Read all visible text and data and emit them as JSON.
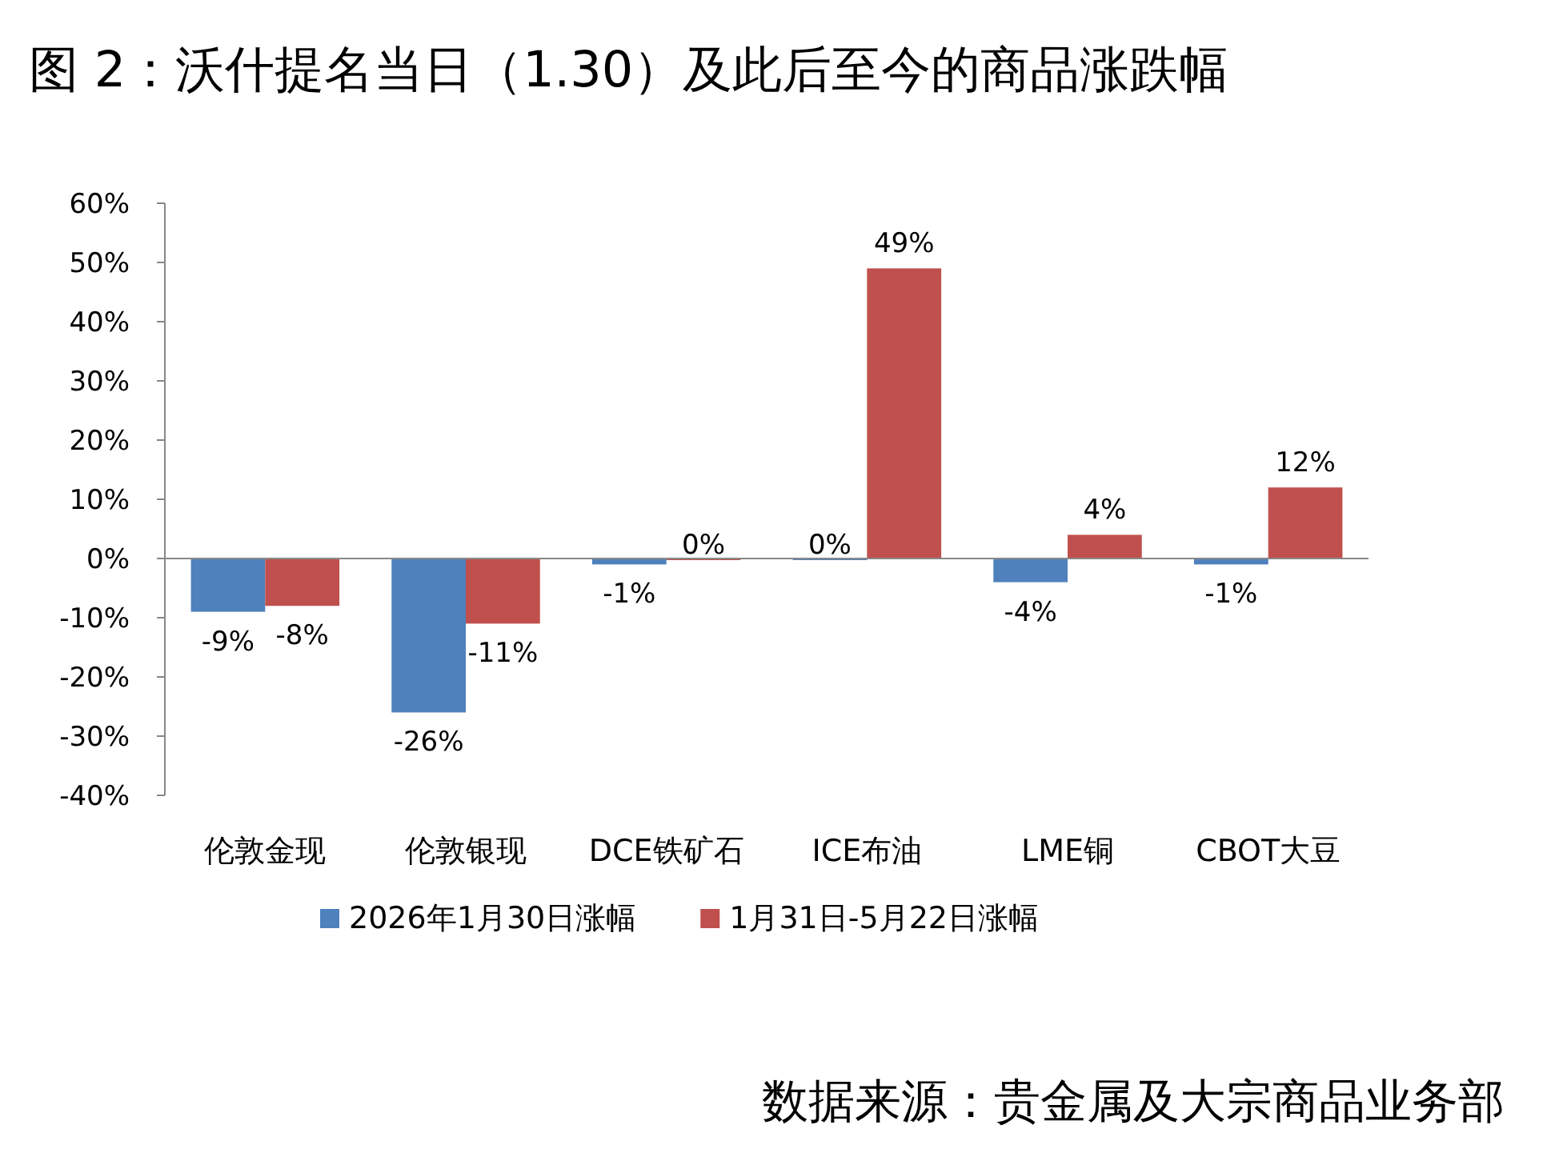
{
  "chart_data": {
    "type": "bar",
    "title": "图 2：沃什提名当日（1.30）及此后至今的商品涨跌幅",
    "categories": [
      "伦敦金现",
      "伦敦银现",
      "DCE铁矿石",
      "ICE布油",
      "LME铜",
      "CBOT大豆"
    ],
    "series": [
      {
        "name": "2026年1月30日涨幅",
        "color": "#4f81bd",
        "values": [
          -9,
          -26,
          -1,
          0,
          -4,
          -1
        ],
        "value_labels": [
          "-9%",
          "-26%",
          "-1%",
          "0%",
          "-4%",
          "-1%"
        ]
      },
      {
        "name": "1月31日-5月22日涨幅",
        "color": "#c0504d",
        "values": [
          -8,
          -11,
          0,
          49,
          4,
          12
        ],
        "value_labels": [
          "-8%",
          "-11%",
          "0%",
          "49%",
          "4%",
          "12%"
        ]
      }
    ],
    "ylim": [
      -40,
      60
    ],
    "yticks": [
      {
        "value": -40,
        "label": "-40%"
      },
      {
        "value": -30,
        "label": "-30%"
      },
      {
        "value": -20,
        "label": "-20%"
      },
      {
        "value": -10,
        "label": "-10%"
      },
      {
        "value": 0,
        "label": "0%"
      },
      {
        "value": 10,
        "label": "10%"
      },
      {
        "value": 20,
        "label": "20%"
      },
      {
        "value": 30,
        "label": "30%"
      },
      {
        "value": 40,
        "label": "40%"
      },
      {
        "value": 50,
        "label": "50%"
      },
      {
        "value": 60,
        "label": "60%"
      }
    ],
    "legend": "bottom",
    "annotations": [
      "数据来源：贵金属及大宗商品业务部"
    ]
  }
}
